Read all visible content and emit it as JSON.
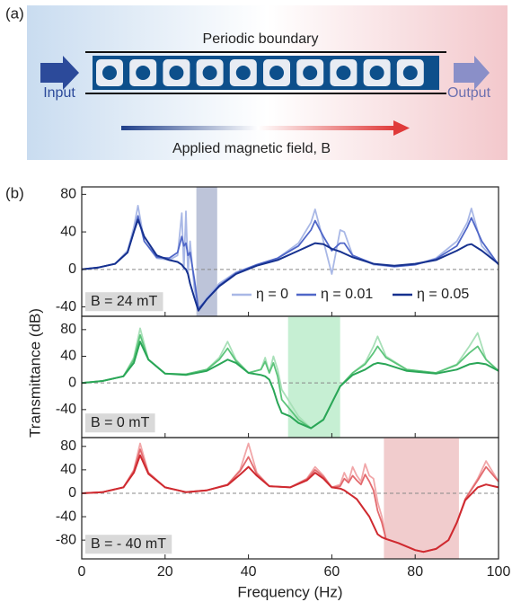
{
  "panel_a": {
    "label": "(a)",
    "boundary": "Periodic boundary",
    "input": "Input",
    "output": "Output",
    "field": "Applied magnetic field, B"
  },
  "panel_b": {
    "label": "(b)"
  },
  "chart_data": [
    {
      "type": "line",
      "annotation": "B = 24 mT",
      "legend": true,
      "zero_line": true,
      "band": [
        27.5,
        32.5
      ],
      "band_color": "#9aa5c4",
      "xlim": [
        0,
        100
      ],
      "xticks": [
        0,
        20,
        40,
        60,
        80,
        100
      ],
      "ylim": [
        -50,
        88
      ],
      "yticks": [
        80,
        40,
        0,
        -40
      ],
      "x": [
        0,
        4,
        8,
        11,
        12.5,
        13.5,
        15,
        18,
        21,
        23,
        24,
        24.5,
        25,
        25.5,
        26,
        27,
        28,
        30,
        33,
        37,
        42,
        47,
        52,
        55,
        56,
        58,
        60,
        62,
        63,
        65,
        70,
        75,
        80,
        85,
        90,
        92.5,
        93.5,
        96,
        100
      ],
      "series": [
        {
          "name": "η = 0",
          "color": "#a9b8e6",
          "values": [
            0,
            2,
            6,
            20,
            45,
            68,
            30,
            12,
            10,
            15,
            60,
            0,
            62,
            -5,
            30,
            -20,
            -44,
            -30,
            -15,
            -3,
            5,
            12,
            28,
            50,
            64,
            30,
            -5,
            42,
            40,
            15,
            5,
            3,
            5,
            12,
            30,
            50,
            65,
            25,
            5
          ]
        },
        {
          "name": "η = 0.01",
          "color": "#5067c8",
          "values": [
            0,
            2,
            6,
            18,
            40,
            57,
            30,
            13,
            12,
            18,
            35,
            25,
            28,
            15,
            18,
            -10,
            -42,
            -32,
            -17,
            -4,
            5,
            12,
            25,
            42,
            52,
            35,
            20,
            28,
            28,
            15,
            6,
            3,
            5,
            11,
            25,
            45,
            55,
            30,
            5
          ]
        },
        {
          "name": "η = 0.05",
          "color": "#16318f",
          "values": [
            0,
            2,
            6,
            18,
            40,
            53,
            35,
            15,
            10,
            8,
            5,
            2,
            0,
            -5,
            -15,
            -30,
            -44,
            -32,
            -18,
            -5,
            4,
            10,
            20,
            26,
            28,
            27,
            22,
            19,
            17,
            13,
            6,
            4,
            6,
            10,
            20,
            26,
            27,
            20,
            6
          ]
        }
      ]
    },
    {
      "type": "line",
      "annotation": "B = 0 mT",
      "zero_line": true,
      "ylabel": "Transmittance (dB)",
      "band": [
        49.5,
        62
      ],
      "band_color": "#a8e6bc",
      "xlim": [
        0,
        100
      ],
      "xticks": [
        0,
        20,
        40,
        60,
        80,
        100
      ],
      "ylim": [
        -82,
        100
      ],
      "yticks": [
        80,
        40,
        0,
        -40
      ],
      "x": [
        0,
        5,
        10,
        12.5,
        14,
        16,
        20,
        25,
        30,
        33,
        35,
        37,
        40,
        43,
        44,
        45,
        46,
        47,
        48,
        50,
        52,
        55,
        58,
        60,
        62,
        65,
        68,
        70,
        71,
        73,
        78,
        85,
        90,
        93,
        95,
        97,
        100
      ],
      "series": [
        {
          "color": "#a8e0b8",
          "values": [
            0,
            3,
            10,
            38,
            82,
            35,
            14,
            13,
            20,
            38,
            62,
            35,
            15,
            20,
            38,
            15,
            40,
            20,
            -10,
            -30,
            -50,
            -68,
            -55,
            -30,
            -5,
            15,
            30,
            55,
            70,
            40,
            20,
            15,
            28,
            55,
            75,
            35,
            18
          ]
        },
        {
          "color": "#5cc47a",
          "values": [
            0,
            3,
            10,
            35,
            72,
            35,
            14,
            13,
            20,
            35,
            52,
            33,
            15,
            20,
            32,
            15,
            30,
            10,
            -25,
            -40,
            -55,
            -68,
            -55,
            -30,
            -5,
            15,
            28,
            45,
            55,
            38,
            20,
            15,
            27,
            45,
            55,
            35,
            18
          ]
        },
        {
          "color": "#2aa657",
          "values": [
            0,
            3,
            10,
            30,
            62,
            35,
            14,
            12,
            18,
            28,
            35,
            30,
            15,
            12,
            10,
            5,
            -10,
            -30,
            -45,
            -50,
            -60,
            -68,
            -55,
            -30,
            -5,
            12,
            20,
            28,
            30,
            28,
            18,
            14,
            20,
            28,
            30,
            28,
            18
          ]
        }
      ]
    },
    {
      "type": "line",
      "annotation": "B = - 40 mT",
      "zero_line": true,
      "xlabel": "Frequency (Hz)",
      "band": [
        72.5,
        90.5
      ],
      "band_color": "#eab0b2",
      "xlim": [
        0,
        100
      ],
      "xticks": [
        0,
        20,
        40,
        60,
        80,
        100
      ],
      "ylim": [
        -112,
        95
      ],
      "yticks": [
        80,
        40,
        0,
        -40,
        -80
      ],
      "x": [
        0,
        5,
        10,
        12.5,
        14,
        16,
        20,
        25,
        30,
        35,
        38,
        40,
        42,
        45,
        50,
        54,
        56,
        58,
        60,
        62,
        63,
        64,
        65,
        66,
        67,
        68,
        69,
        70,
        71,
        72,
        73,
        76,
        80,
        82,
        85,
        88,
        90,
        92,
        95,
        97,
        100
      ],
      "series": [
        {
          "color": "#f1a6a8",
          "values": [
            0,
            2,
            10,
            40,
            85,
            35,
            10,
            2,
            5,
            15,
            40,
            85,
            35,
            12,
            10,
            25,
            45,
            30,
            10,
            15,
            35,
            20,
            45,
            30,
            20,
            50,
            30,
            25,
            -15,
            -40,
            -78,
            -85,
            -97,
            -100,
            -95,
            -80,
            -50,
            -10,
            25,
            55,
            20
          ]
        },
        {
          "color": "#e36a6e",
          "values": [
            0,
            2,
            10,
            38,
            75,
            35,
            10,
            2,
            5,
            15,
            38,
            62,
            33,
            12,
            10,
            24,
            40,
            28,
            10,
            12,
            25,
            18,
            30,
            22,
            15,
            32,
            20,
            5,
            -30,
            -50,
            -78,
            -85,
            -97,
            -100,
            -95,
            -80,
            -50,
            -10,
            22,
            45,
            20
          ]
        },
        {
          "color": "#cf2a30",
          "values": [
            0,
            2,
            10,
            35,
            65,
            33,
            10,
            2,
            5,
            14,
            32,
            45,
            30,
            12,
            10,
            22,
            35,
            25,
            10,
            8,
            5,
            0,
            -5,
            -10,
            -20,
            -30,
            -40,
            -55,
            -70,
            -75,
            -78,
            -85,
            -97,
            -100,
            -95,
            -80,
            -50,
            -12,
            10,
            15,
            10
          ]
        }
      ]
    }
  ]
}
